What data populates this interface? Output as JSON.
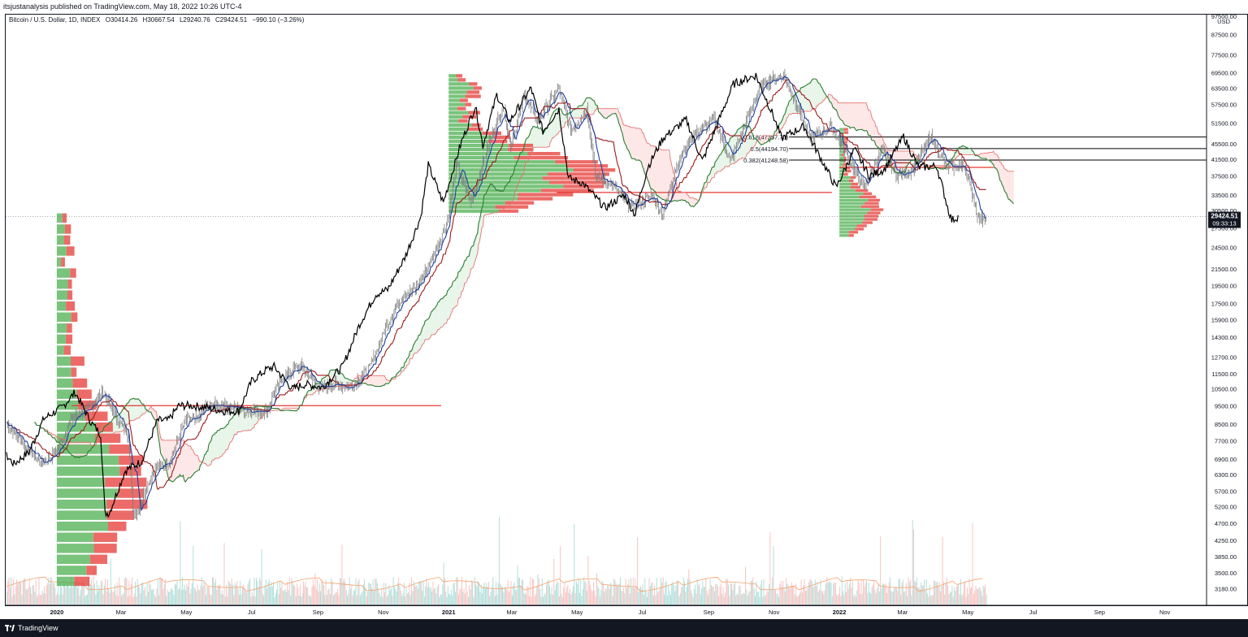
{
  "header": {
    "attribution": "itsjustanalysis published on TradingView.com, May 18, 2022 10:26 UTC-4"
  },
  "legend": {
    "symbol": "Bitcoin / U.S. Dollar, 1D, INDEX",
    "open": "O30414.26",
    "high": "H30667.54",
    "low": "L29240.76",
    "close": "C29424.51",
    "change": "−990.10 (−3.26%)"
  },
  "footer": {
    "brand": "TradingView"
  },
  "colors": {
    "up": "#26a69a",
    "down": "#ef5350",
    "vp_up": "#4caf50",
    "vp_down": "#e53935",
    "price": "#000000",
    "tenkan": "#1e3f9e",
    "kijun": "#9b1c1c",
    "span_a": "#2e7d32",
    "span_b": "#e57373"
  },
  "chart_data": {
    "type": "line",
    "title": "Bitcoin / U.S. Dollar, 1D, INDEX",
    "scale": "log",
    "x_range": [
      "2019-11-15",
      "2022-12-10"
    ],
    "y_range": [
      2950,
      97500
    ],
    "currency_label": "USD",
    "y_ticks": [
      "97500.00",
      "87500.00",
      "77500.00",
      "69500.00",
      "63500.00",
      "57500.00",
      "51500.00",
      "45500.00",
      "41500.00",
      "37500.00",
      "33500.00",
      "30500.00",
      "27500.00",
      "24500.00",
      "21500.00",
      "19500.00",
      "17500.00",
      "15900.00",
      "14300.00",
      "12700.00",
      "11500.00",
      "10500.00",
      "9500.00",
      "8500.00",
      "7700.00",
      "6900.00",
      "6300.00",
      "5700.00",
      "5200.00",
      "4700.00",
      "4250.00",
      "3850.00",
      "3500.00",
      "3180.00"
    ],
    "x_ticks": [
      {
        "label": "2020",
        "date": "2020-01-01",
        "bold": true
      },
      {
        "label": "Mar",
        "date": "2020-03-01"
      },
      {
        "label": "May",
        "date": "2020-05-01"
      },
      {
        "label": "Jul",
        "date": "2020-07-01"
      },
      {
        "label": "Sep",
        "date": "2020-09-01"
      },
      {
        "label": "Nov",
        "date": "2020-11-01"
      },
      {
        "label": "2021",
        "date": "2021-01-01",
        "bold": true
      },
      {
        "label": "Mar",
        "date": "2021-03-01"
      },
      {
        "label": "May",
        "date": "2021-05-01"
      },
      {
        "label": "Jul",
        "date": "2021-07-01"
      },
      {
        "label": "Sep",
        "date": "2021-09-01"
      },
      {
        "label": "Nov",
        "date": "2021-11-01"
      },
      {
        "label": "2022",
        "date": "2022-01-01",
        "bold": true
      },
      {
        "label": "Mar",
        "date": "2022-03-01"
      },
      {
        "label": "May",
        "date": "2022-05-01"
      },
      {
        "label": "Jul",
        "date": "2022-07-01"
      },
      {
        "label": "Sep",
        "date": "2022-09-01"
      },
      {
        "label": "Nov",
        "date": "2022-11-01"
      }
    ],
    "price_series": {
      "name": "Bitcoin / U.S. Dollar",
      "points": [
        [
          "2019-11-15",
          8600
        ],
        [
          "2019-12-01",
          7550
        ],
        [
          "2019-12-18",
          6700
        ],
        [
          "2020-01-01",
          7200
        ],
        [
          "2020-01-15",
          8800
        ],
        [
          "2020-02-01",
          9400
        ],
        [
          "2020-02-13",
          10300
        ],
        [
          "2020-02-28",
          8600
        ],
        [
          "2020-03-08",
          8000
        ],
        [
          "2020-03-12",
          5000
        ],
        [
          "2020-03-16",
          5000
        ],
        [
          "2020-03-31",
          6450
        ],
        [
          "2020-04-15",
          6800
        ],
        [
          "2020-04-30",
          8700
        ],
        [
          "2020-05-10",
          8700
        ],
        [
          "2020-05-20",
          9500
        ],
        [
          "2020-06-01",
          9500
        ],
        [
          "2020-06-15",
          9400
        ],
        [
          "2020-07-01",
          9200
        ],
        [
          "2020-07-15",
          9200
        ],
        [
          "2020-07-27",
          11000
        ],
        [
          "2020-08-10",
          11800
        ],
        [
          "2020-08-17",
          12000
        ],
        [
          "2020-09-03",
          10500
        ],
        [
          "2020-09-15",
          10800
        ],
        [
          "2020-10-01",
          10600
        ],
        [
          "2020-10-20",
          12000
        ],
        [
          "2020-11-05",
          15500
        ],
        [
          "2020-11-20",
          18500
        ],
        [
          "2020-12-01",
          19000
        ],
        [
          "2020-12-17",
          23000
        ],
        [
          "2021-01-01",
          29400
        ],
        [
          "2021-01-08",
          40000
        ],
        [
          "2021-01-22",
          32000
        ],
        [
          "2021-02-08",
          46000
        ],
        [
          "2021-02-21",
          57000
        ],
        [
          "2021-02-28",
          45000
        ],
        [
          "2021-03-13",
          61000
        ],
        [
          "2021-03-25",
          52000
        ],
        [
          "2021-04-14",
          63500
        ],
        [
          "2021-04-25",
          49000
        ],
        [
          "2021-05-10",
          56000
        ],
        [
          "2021-05-19",
          37000
        ],
        [
          "2021-06-01",
          36000
        ],
        [
          "2021-06-22",
          31000
        ],
        [
          "2021-07-10",
          33500
        ],
        [
          "2021-07-20",
          29800
        ],
        [
          "2021-08-01",
          39500
        ],
        [
          "2021-08-15",
          47000
        ],
        [
          "2021-09-06",
          52500
        ],
        [
          "2021-09-21",
          41000
        ],
        [
          "2021-10-01",
          48000
        ],
        [
          "2021-10-20",
          65000
        ],
        [
          "2021-11-10",
          68500
        ],
        [
          "2021-11-26",
          54000
        ],
        [
          "2021-12-04",
          47000
        ],
        [
          "2021-12-25",
          50500
        ],
        [
          "2022-01-10",
          41500
        ],
        [
          "2022-01-24",
          35000
        ],
        [
          "2022-02-10",
          44000
        ],
        [
          "2022-02-24",
          37500
        ],
        [
          "2022-03-10",
          39000
        ],
        [
          "2022-03-28",
          47500
        ],
        [
          "2022-04-11",
          39500
        ],
        [
          "2022-04-28",
          39800
        ],
        [
          "2022-05-09",
          30500
        ],
        [
          "2022-05-12",
          28800
        ],
        [
          "2022-05-18",
          29424
        ]
      ]
    },
    "last_price_label": "29424.51",
    "countdown_label": "09:33:13",
    "fibonacci_levels": [
      {
        "label": "0.618(47357.70)",
        "value": 47357.7
      },
      {
        "label": "0.5(44194.70)",
        "value": 44194.7
      },
      {
        "label": "0.382(41248.58)",
        "value": 41248.58
      }
    ],
    "fib_range": [
      "2021-11-15",
      "2022-12-10"
    ],
    "poc_lines": [
      {
        "value": 9500,
        "from": "2020-01-15",
        "to": "2020-12-25"
      },
      {
        "value": 34000,
        "from": "2021-04-12",
        "to": "2021-12-25"
      },
      {
        "value": 39500,
        "from": "2022-01-01",
        "to": "2022-05-25"
      }
    ],
    "volume_profiles": [
      {
        "anchor": "2020-01-01",
        "levels": [
          30000,
          3200
        ],
        "width_days": 38
      },
      {
        "anchor": "2021-01-01",
        "levels": [
          69000,
          30000
        ],
        "width_days": 70
      },
      {
        "anchor": "2022-01-01",
        "levels": [
          50000,
          26000
        ],
        "width_days": 18
      }
    ]
  }
}
